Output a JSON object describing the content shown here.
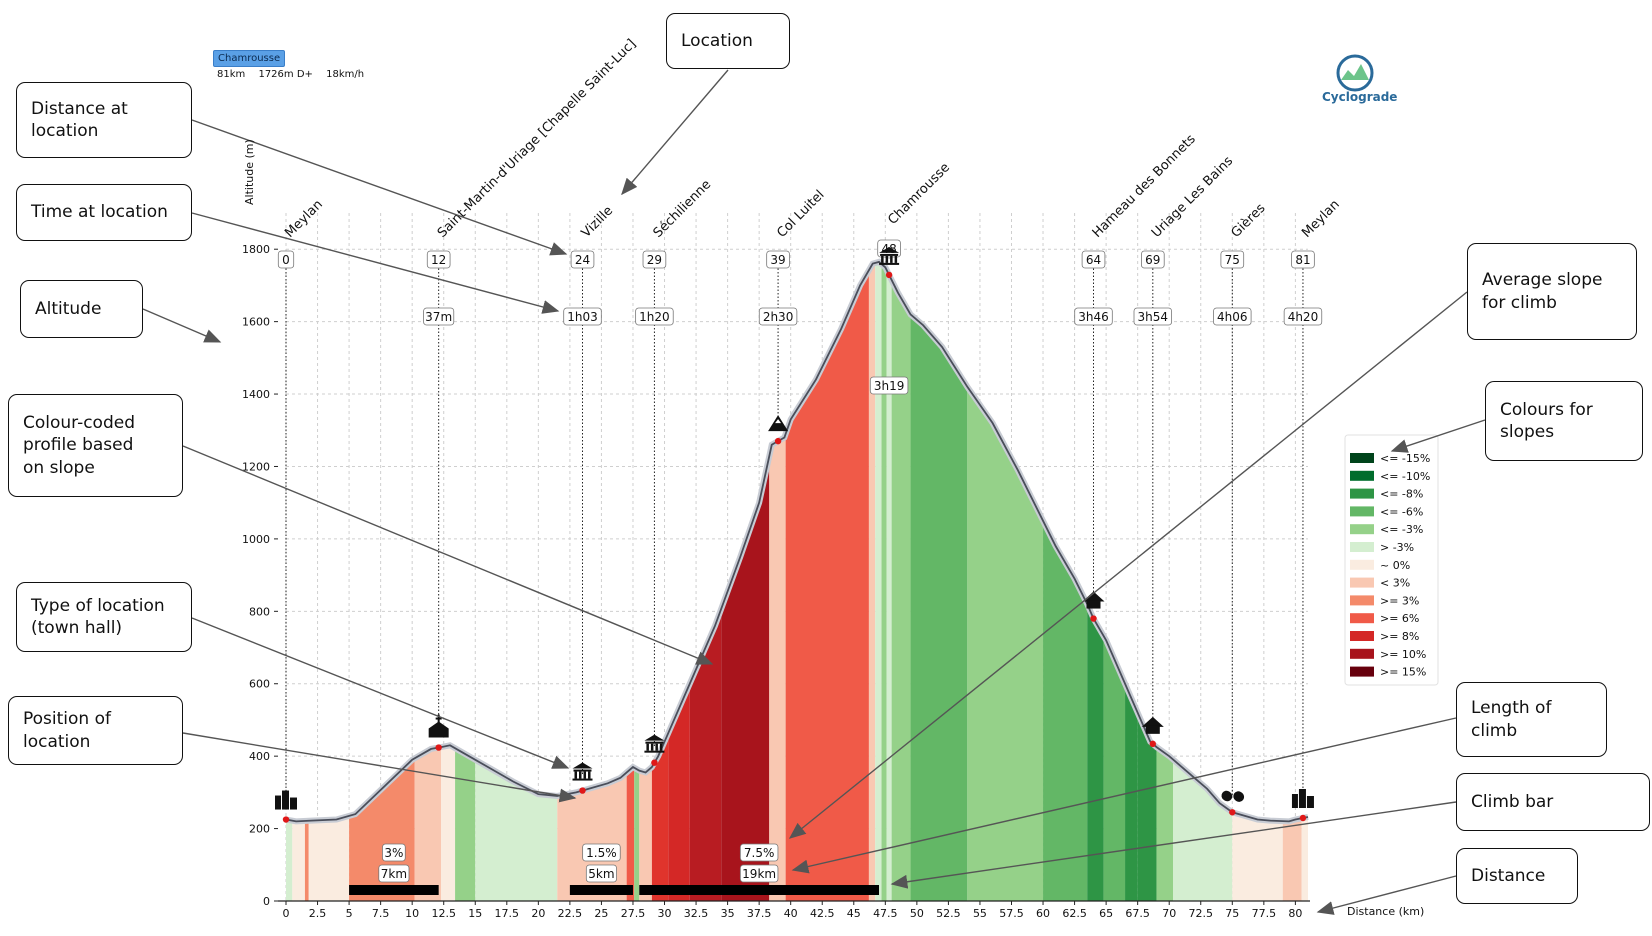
{
  "route": {
    "badge": "Chamrousse",
    "distance": "81km",
    "elevation_gain": "1726m D+",
    "speed": "18km/h"
  },
  "brand": {
    "name": "Cyclograde"
  },
  "callouts": [
    {
      "id": "location",
      "text": "Location"
    },
    {
      "id": "distance-at-location",
      "text": "Distance at\nlocation"
    },
    {
      "id": "time-at-location",
      "text": "Time at location"
    },
    {
      "id": "altitude",
      "text": "Altitude"
    },
    {
      "id": "colour-profile",
      "text": "Colour-coded\nprofile based\non slope"
    },
    {
      "id": "type-of-location",
      "text": "Type of location\n(town hall)"
    },
    {
      "id": "position-of-location",
      "text": "Position of\nlocation"
    },
    {
      "id": "average-slope",
      "text": "Average slope\nfor climb"
    },
    {
      "id": "colours-for-slopes",
      "text": "Colours for\nslopes"
    },
    {
      "id": "length-of-climb",
      "text": "Length of\nclimb"
    },
    {
      "id": "climb-bar",
      "text": "Climb bar"
    },
    {
      "id": "distance",
      "text": "Distance"
    }
  ],
  "chart_data": {
    "type": "area",
    "xlabel": "Distance (km)",
    "ylabel": "Altitude (m)",
    "xlim": [
      0,
      81
    ],
    "ylim": [
      0,
      1900
    ],
    "x_ticks": [
      0,
      2.5,
      5,
      7.5,
      10,
      12.5,
      15,
      17.5,
      20,
      22.5,
      25,
      27.5,
      30,
      32.5,
      35,
      37.5,
      40,
      42.5,
      45,
      47.5,
      50,
      52.5,
      55,
      57.5,
      60,
      62.5,
      65,
      67.5,
      70,
      72.5,
      75,
      77.5,
      80
    ],
    "y_ticks": [
      0,
      200,
      400,
      600,
      800,
      1000,
      1200,
      1400,
      1600,
      1800
    ],
    "profile": [
      [
        0,
        225
      ],
      [
        0.8,
        220
      ],
      [
        2,
        222
      ],
      [
        4,
        225
      ],
      [
        5.5,
        240
      ],
      [
        7,
        290
      ],
      [
        8.5,
        340
      ],
      [
        10,
        390
      ],
      [
        11.5,
        420
      ],
      [
        12.3,
        425
      ],
      [
        13,
        430
      ],
      [
        14,
        410
      ],
      [
        16,
        370
      ],
      [
        18,
        330
      ],
      [
        20,
        295
      ],
      [
        21.5,
        290
      ],
      [
        23,
        300
      ],
      [
        24,
        310
      ],
      [
        25.5,
        325
      ],
      [
        26.5,
        340
      ],
      [
        27,
        355
      ],
      [
        27.5,
        370
      ],
      [
        28,
        360
      ],
      [
        28.5,
        355
      ],
      [
        29,
        370
      ],
      [
        29.5,
        400
      ],
      [
        30,
        440
      ],
      [
        32,
        600
      ],
      [
        34,
        760
      ],
      [
        36,
        950
      ],
      [
        37.5,
        1100
      ],
      [
        38.5,
        1260
      ],
      [
        39,
        1270
      ],
      [
        39.5,
        1280
      ],
      [
        40,
        1330
      ],
      [
        42,
        1440
      ],
      [
        44,
        1580
      ],
      [
        45.5,
        1700
      ],
      [
        46.5,
        1760
      ],
      [
        47,
        1765
      ],
      [
        47.5,
        1750
      ],
      [
        48.5,
        1680
      ],
      [
        49.5,
        1620
      ],
      [
        50.5,
        1590
      ],
      [
        52,
        1530
      ],
      [
        54,
        1420
      ],
      [
        56,
        1320
      ],
      [
        58,
        1190
      ],
      [
        60,
        1050
      ],
      [
        61,
        980
      ],
      [
        62.5,
        890
      ],
      [
        63.5,
        820
      ],
      [
        64,
        780
      ],
      [
        65,
        720
      ],
      [
        66,
        640
      ],
      [
        67,
        560
      ],
      [
        68,
        480
      ],
      [
        68.5,
        440
      ],
      [
        69,
        425
      ],
      [
        70,
        400
      ],
      [
        71,
        370
      ],
      [
        72,
        340
      ],
      [
        73,
        310
      ],
      [
        74,
        270
      ],
      [
        75,
        245
      ],
      [
        76,
        235
      ],
      [
        77,
        225
      ],
      [
        78,
        222
      ],
      [
        79.5,
        220
      ],
      [
        80,
        225
      ],
      [
        81,
        232
      ]
    ],
    "slope_bands": [
      {
        "from": 0,
        "to": 0.5,
        "c": "#d4eed0"
      },
      {
        "from": 0.5,
        "to": 1.5,
        "c": "#faece0"
      },
      {
        "from": 1.5,
        "to": 1.8,
        "c": "#f48a6a"
      },
      {
        "from": 1.8,
        "to": 5,
        "c": "#faece0"
      },
      {
        "from": 5,
        "to": 10.2,
        "c": "#f48a6a"
      },
      {
        "from": 10.2,
        "to": 12.3,
        "c": "#f9c8b2"
      },
      {
        "from": 12.3,
        "to": 13.4,
        "c": "#faece0"
      },
      {
        "from": 13.4,
        "to": 15,
        "c": "#95d189"
      },
      {
        "from": 15,
        "to": 21.5,
        "c": "#d4eed0"
      },
      {
        "from": 21.5,
        "to": 27,
        "c": "#f9c8b2"
      },
      {
        "from": 27,
        "to": 27.6,
        "c": "#f05a48"
      },
      {
        "from": 27.6,
        "to": 28,
        "c": "#95d189"
      },
      {
        "from": 28,
        "to": 29,
        "c": "#f9c8b2"
      },
      {
        "from": 29,
        "to": 30.3,
        "c": "#e0342c"
      },
      {
        "from": 30.3,
        "to": 32,
        "c": "#d42826"
      },
      {
        "from": 32,
        "to": 34.5,
        "c": "#b81c22"
      },
      {
        "from": 34.5,
        "to": 38.3,
        "c": "#a8141c"
      },
      {
        "from": 38.3,
        "to": 39.6,
        "c": "#f9c8b2"
      },
      {
        "from": 39.6,
        "to": 46.2,
        "c": "#f05a48"
      },
      {
        "from": 46.2,
        "to": 46.7,
        "c": "#f9c8b2"
      },
      {
        "from": 46.7,
        "to": 47.2,
        "c": "#d4eed0"
      },
      {
        "from": 47.2,
        "to": 47.6,
        "c": "#95d189"
      },
      {
        "from": 47.6,
        "to": 48,
        "c": "#d4eed0"
      },
      {
        "from": 48,
        "to": 49.5,
        "c": "#95d189"
      },
      {
        "from": 49.5,
        "to": 54,
        "c": "#63b766"
      },
      {
        "from": 54,
        "to": 60,
        "c": "#95d189"
      },
      {
        "from": 60,
        "to": 63.5,
        "c": "#63b766"
      },
      {
        "from": 63.5,
        "to": 64.8,
        "c": "#2e9545"
      },
      {
        "from": 64.8,
        "to": 66.5,
        "c": "#63b766"
      },
      {
        "from": 66.5,
        "to": 67.5,
        "c": "#2e9545"
      },
      {
        "from": 67.5,
        "to": 69,
        "c": "#2e9545"
      },
      {
        "from": 69,
        "to": 70.3,
        "c": "#95d189"
      },
      {
        "from": 70.3,
        "to": 75,
        "c": "#d4eed0"
      },
      {
        "from": 75,
        "to": 77,
        "c": "#faece0"
      },
      {
        "from": 77,
        "to": 79,
        "c": "#faece0"
      },
      {
        "from": 79,
        "to": 80.5,
        "c": "#f9c8b2"
      },
      {
        "from": 80.5,
        "to": 81,
        "c": "#faece0"
      }
    ],
    "locations": [
      {
        "name": "Meylan",
        "km": "0",
        "x": 0,
        "time": "",
        "icon": "city-icon"
      },
      {
        "name": "Saint-Martin-d'Uriage [Chapelle Saint-Luc]",
        "km": "12",
        "x": 12.1,
        "time": "37m",
        "icon": "church-icon"
      },
      {
        "name": "Vizille",
        "km": "24",
        "x": 23.5,
        "time": "1h03",
        "icon": "town-hall-icon"
      },
      {
        "name": "Séchilienne",
        "km": "29",
        "x": 29.2,
        "time": "1h20",
        "icon": "town-hall-icon"
      },
      {
        "name": "Col Luitel",
        "km": "39",
        "x": 39,
        "time": "2h30",
        "icon": "pass-icon"
      },
      {
        "name": "Chamrousse",
        "km": "48",
        "x": 47.8,
        "time": "3h19",
        "icon": "town-hall-icon"
      },
      {
        "name": "Hameau des Bonnets",
        "km": "64",
        "x": 64,
        "time": "3h46",
        "icon": "house-icon"
      },
      {
        "name": "Uriage Les Bains",
        "km": "69",
        "x": 68.7,
        "time": "3h54",
        "icon": "house-icon"
      },
      {
        "name": "Gières",
        "km": "75",
        "x": 75,
        "time": "4h06",
        "icon": "pill-icon"
      },
      {
        "name": "Meylan",
        "km": "81",
        "x": 80.6,
        "time": "4h20",
        "icon": "city-icon"
      }
    ],
    "climbs": [
      {
        "from": 5,
        "to": 12.1,
        "slope": "3%",
        "length": "7km"
      },
      {
        "from": 22.5,
        "to": 27.5,
        "slope": "1.5%",
        "length": "5km"
      },
      {
        "from": 28,
        "to": 47,
        "slope": "7.5%",
        "length": "19km"
      }
    ],
    "legend": [
      {
        "label": "<= -15%",
        "color": "#00441b"
      },
      {
        "label": "<= -10%",
        "color": "#006d2c"
      },
      {
        "label": "<= -8%",
        "color": "#2e9545"
      },
      {
        "label": "<= -6%",
        "color": "#63b766"
      },
      {
        "label": "<= -3%",
        "color": "#95d189"
      },
      {
        "label": "> -3%",
        "color": "#d4eed0"
      },
      {
        "label": "~  0%",
        "color": "#faece0"
      },
      {
        "label": "< 3%",
        "color": "#f9c8b2"
      },
      {
        "label": ">= 3%",
        "color": "#f48a6a"
      },
      {
        "label": ">= 6%",
        "color": "#f05a48"
      },
      {
        "label": ">= 8%",
        "color": "#d42826"
      },
      {
        "label": ">= 10%",
        "color": "#a8141c"
      },
      {
        "label": ">= 15%",
        "color": "#67000d"
      }
    ]
  }
}
